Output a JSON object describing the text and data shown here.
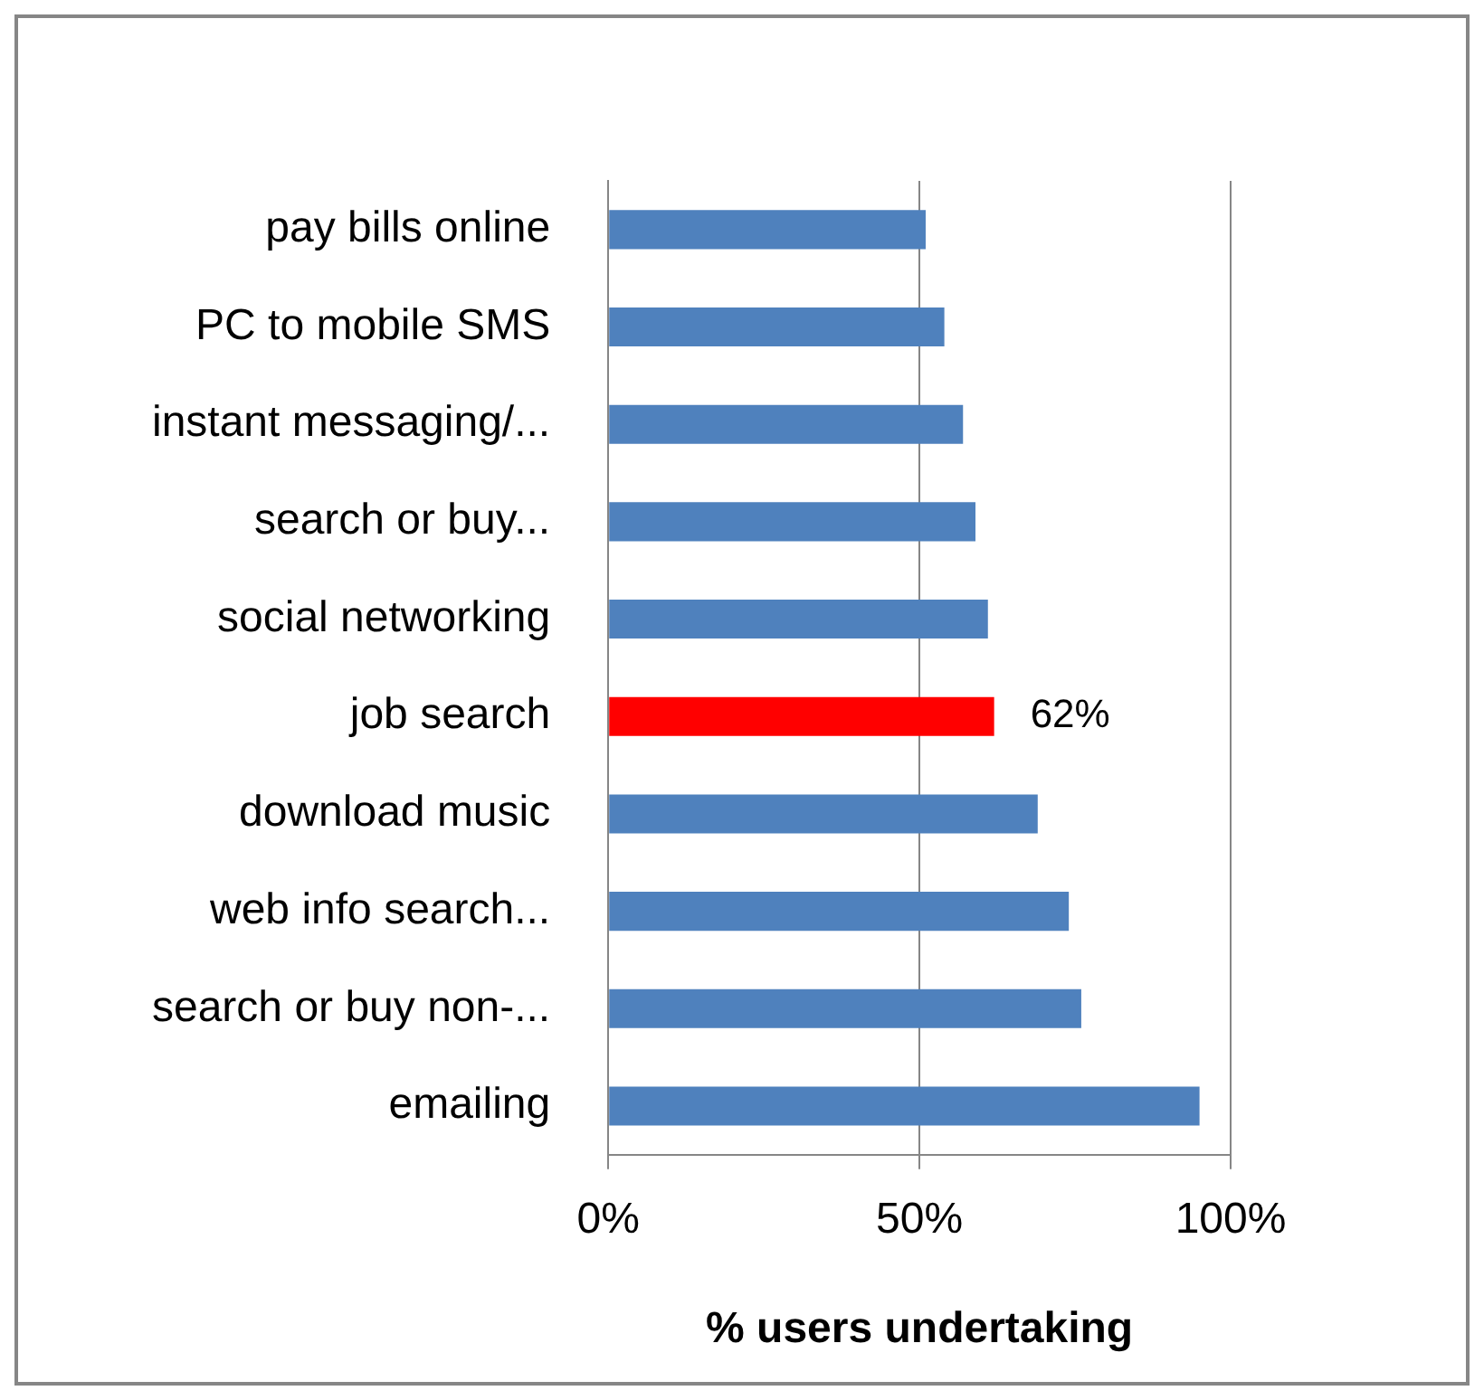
{
  "chart_data": {
    "type": "bar",
    "orientation": "horizontal",
    "xlabel": "% users undertaking",
    "categories": [
      "pay bills online",
      "PC to mobile SMS",
      "instant messaging/...",
      "search or buy...",
      "social networking",
      "job search",
      "download music",
      "web info search...",
      "search or buy non-...",
      "emailing"
    ],
    "values": [
      51,
      54,
      57,
      59,
      61,
      62,
      69,
      74,
      76,
      95
    ],
    "colors": [
      "#4f81bd",
      "#4f81bd",
      "#4f81bd",
      "#4f81bd",
      "#4f81bd",
      "#ff0000",
      "#4f81bd",
      "#4f81bd",
      "#4f81bd",
      "#4f81bd"
    ],
    "value_labels": [
      null,
      null,
      null,
      null,
      null,
      "62%",
      null,
      null,
      null,
      null
    ],
    "xlim": [
      0,
      100
    ],
    "xticks": [
      {
        "value": 0,
        "label": "0%"
      },
      {
        "value": 50,
        "label": "50%"
      },
      {
        "value": 100,
        "label": "100%"
      }
    ],
    "grid": "x",
    "legend": false
  }
}
